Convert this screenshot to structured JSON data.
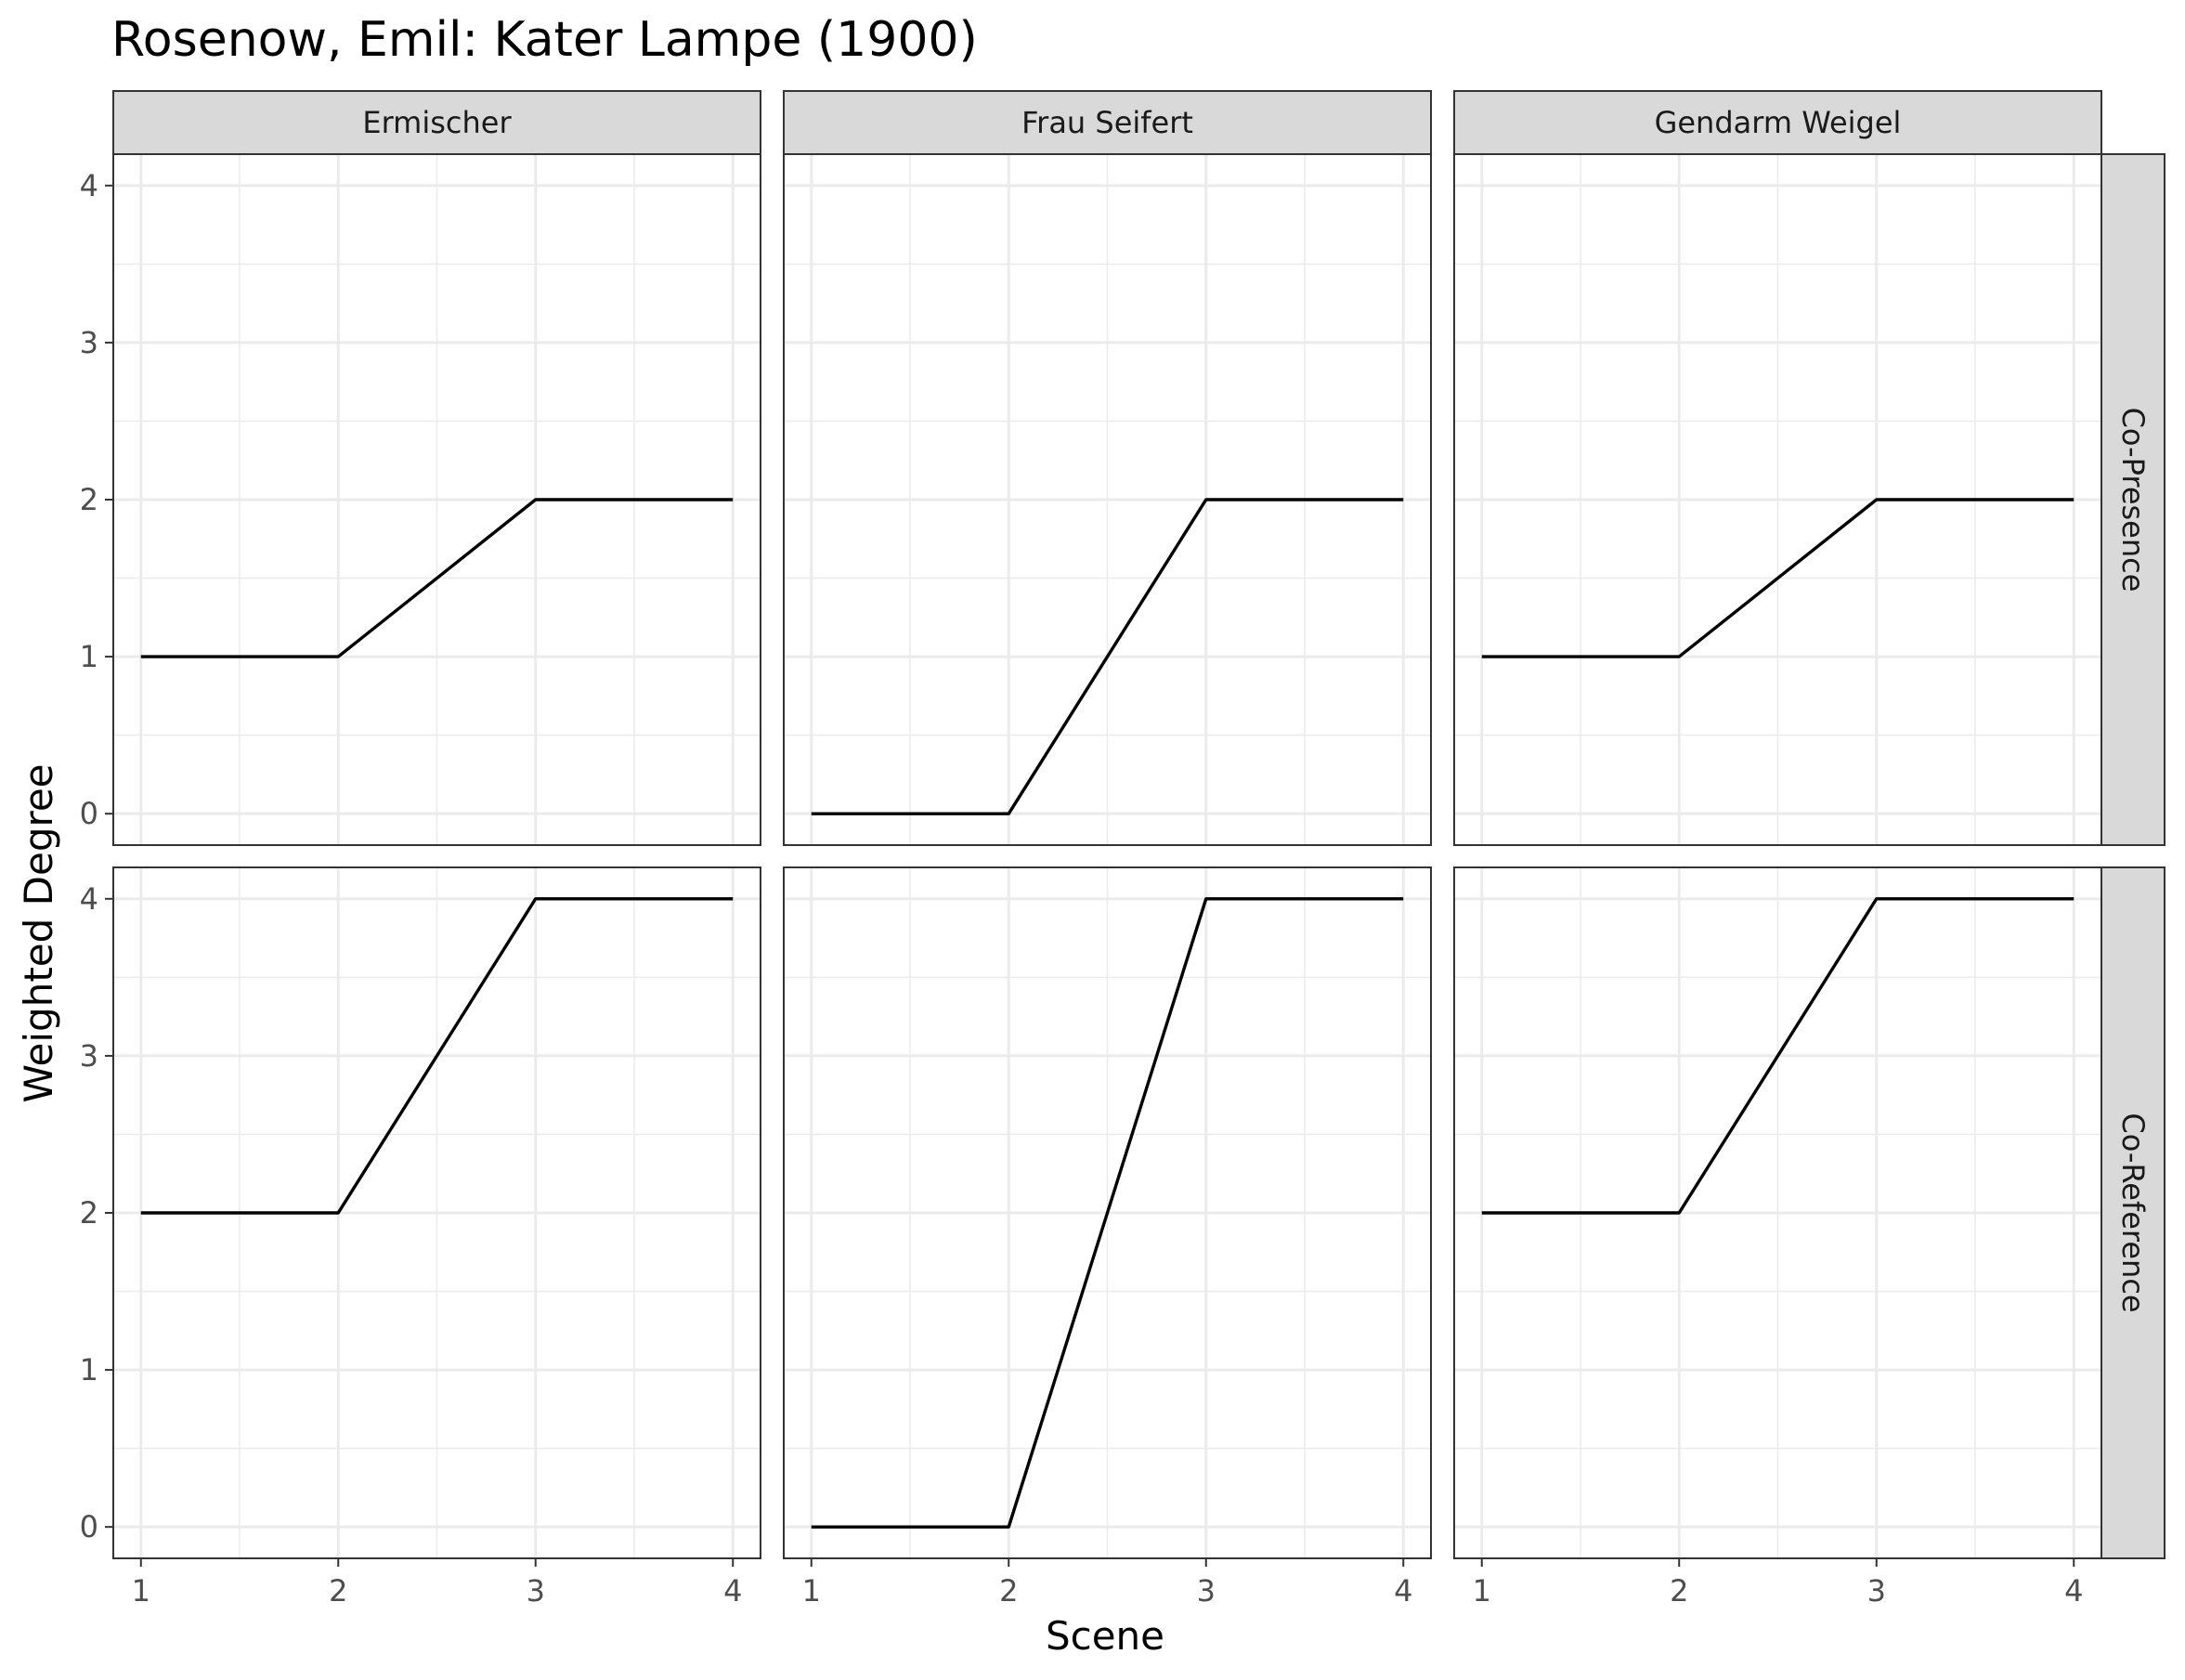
{
  "chart_data": {
    "type": "line",
    "title": "Rosenow, Emil: Kater Lampe (1900)",
    "xlabel": "Scene",
    "ylabel": "Weighted Degree",
    "x": [
      1,
      2,
      3,
      4
    ],
    "xlim": [
      0.86,
      4.14
    ],
    "ylim": [
      -0.2,
      4.2
    ],
    "x_ticks": [
      1,
      2,
      3,
      4
    ],
    "y_ticks": [
      0,
      1,
      2,
      3,
      4
    ],
    "grid": true,
    "columns": [
      "Ermischer",
      "Frau Seifert",
      "Gendarm Weigel"
    ],
    "rows": [
      "Co-Presence",
      "Co-Reference"
    ],
    "panels": [
      {
        "column": "Ermischer",
        "row": "Co-Presence",
        "values": [
          1,
          1,
          2,
          2
        ]
      },
      {
        "column": "Frau Seifert",
        "row": "Co-Presence",
        "values": [
          0,
          0,
          2,
          2
        ]
      },
      {
        "column": "Gendarm Weigel",
        "row": "Co-Presence",
        "values": [
          1,
          1,
          2,
          2
        ]
      },
      {
        "column": "Ermischer",
        "row": "Co-Reference",
        "values": [
          2,
          2,
          4,
          4
        ]
      },
      {
        "column": "Frau Seifert",
        "row": "Co-Reference",
        "values": [
          0,
          0,
          4,
          4
        ]
      },
      {
        "column": "Gendarm Weigel",
        "row": "Co-Reference",
        "values": [
          2,
          2,
          4,
          4
        ]
      }
    ],
    "colors": {
      "line": "#000000",
      "strip": "#d9d9d9",
      "grid": "#ebebeb"
    }
  }
}
